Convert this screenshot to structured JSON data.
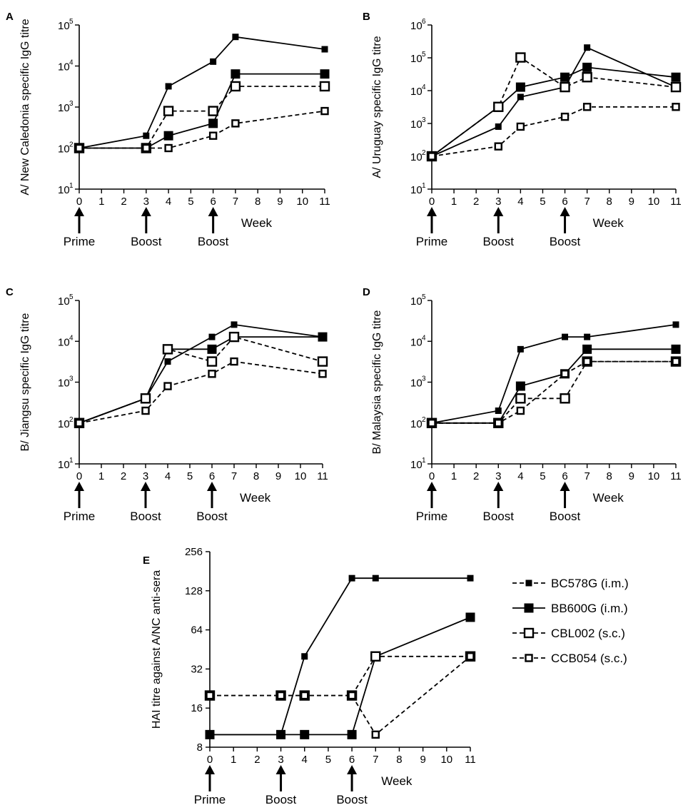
{
  "figure": {
    "week_label": "Week",
    "arrow_labels": [
      "Prime",
      "Boost",
      "Boost"
    ],
    "arrow_weeks": [
      0,
      3,
      6
    ],
    "x_ticks": [
      0,
      1,
      2,
      3,
      4,
      5,
      6,
      7,
      8,
      9,
      10,
      11
    ]
  },
  "legend": {
    "entries": [
      {
        "name": "BC578G (i.m.)",
        "marker": "filled-small",
        "dash": true
      },
      {
        "name": "BB600G (i.m.)",
        "marker": "filled-large",
        "dash": false
      },
      {
        "name": "CBL002 (s.c.)",
        "marker": "open-large",
        "dash": true
      },
      {
        "name": "CCB054 (s.c.)",
        "marker": "open-small",
        "dash": true
      }
    ]
  },
  "colors": {
    "line": "#000000",
    "background": "#ffffff"
  },
  "chart_data": [
    {
      "id": "A",
      "panel_label": "A",
      "type": "line",
      "scale": "log",
      "ylabel": "A/ New Caledonia specific IgG titre",
      "xlabel": "Week",
      "ylim": [
        10,
        100000
      ],
      "y_ticks": [
        {
          "base": "10",
          "exp": "1"
        },
        {
          "base": "10",
          "exp": "2"
        },
        {
          "base": "10",
          "exp": "3"
        },
        {
          "base": "10",
          "exp": "4"
        },
        {
          "base": "10",
          "exp": "5"
        }
      ],
      "series": [
        {
          "name": "BC578G (i.m.)",
          "x": [
            0,
            3,
            4,
            6,
            7,
            11
          ],
          "values": [
            100,
            200,
            3200,
            12800,
            51200,
            25600
          ]
        },
        {
          "name": "BB600G (i.m.)",
          "x": [
            0,
            3,
            4,
            6,
            7,
            11
          ],
          "values": [
            100,
            100,
            200,
            400,
            6400,
            6400
          ]
        },
        {
          "name": "CBL002 (s.c.)",
          "x": [
            0,
            3,
            4,
            6,
            7,
            11
          ],
          "values": [
            100,
            100,
            800,
            800,
            3200,
            3200
          ]
        },
        {
          "name": "CCB054 (s.c.)",
          "x": [
            0,
            3,
            4,
            6,
            7,
            11
          ],
          "values": [
            100,
            100,
            100,
            200,
            400,
            800
          ]
        }
      ]
    },
    {
      "id": "B",
      "panel_label": "B",
      "type": "line",
      "scale": "log",
      "ylabel": "A/ Uruguay specific IgG titre",
      "xlabel": "Week",
      "ylim": [
        10,
        1000000
      ],
      "y_ticks": [
        {
          "base": "10",
          "exp": "1"
        },
        {
          "base": "10",
          "exp": "2"
        },
        {
          "base": "10",
          "exp": "3"
        },
        {
          "base": "10",
          "exp": "4"
        },
        {
          "base": "10",
          "exp": "5"
        },
        {
          "base": "10",
          "exp": "6"
        }
      ],
      "series": [
        {
          "name": "BC578G (i.m.)",
          "x": [
            0,
            3,
            4,
            6,
            7,
            11
          ],
          "values": [
            100,
            800,
            6400,
            12800,
            204800,
            12800
          ]
        },
        {
          "name": "BB600G (i.m.)",
          "x": [
            0,
            3,
            4,
            6,
            7,
            11
          ],
          "values": [
            100,
            3200,
            12800,
            25600,
            51200,
            25600
          ]
        },
        {
          "name": "CBL002 (s.c.)",
          "x": [
            0,
            3,
            4,
            6,
            7,
            11
          ],
          "values": [
            100,
            3200,
            102400,
            12800,
            25600,
            12800
          ]
        },
        {
          "name": "CCB054 (s.c.)",
          "x": [
            0,
            3,
            4,
            6,
            7,
            11
          ],
          "values": [
            100,
            200,
            800,
            1600,
            3200,
            3200
          ]
        }
      ]
    },
    {
      "id": "C",
      "panel_label": "C",
      "type": "line",
      "scale": "log",
      "ylabel": "B/ Jiangsu specific IgG titre",
      "xlabel": "Week",
      "ylim": [
        10,
        100000
      ],
      "y_ticks": [
        {
          "base": "10",
          "exp": "1"
        },
        {
          "base": "10",
          "exp": "2"
        },
        {
          "base": "10",
          "exp": "3"
        },
        {
          "base": "10",
          "exp": "4"
        },
        {
          "base": "10",
          "exp": "5"
        }
      ],
      "series": [
        {
          "name": "BC578G (i.m.)",
          "x": [
            0,
            3,
            4,
            6,
            7,
            11
          ],
          "values": [
            100,
            400,
            3200,
            12800,
            25600,
            12800
          ]
        },
        {
          "name": "BB600G (i.m.)",
          "x": [
            0,
            3,
            4,
            6,
            7,
            11
          ],
          "values": [
            100,
            400,
            6400,
            6400,
            12800,
            12800
          ]
        },
        {
          "name": "CBL002 (s.c.)",
          "x": [
            0,
            3,
            4,
            6,
            7,
            11
          ],
          "values": [
            100,
            400,
            6400,
            3200,
            12800,
            3200
          ]
        },
        {
          "name": "CCB054 (s.c.)",
          "x": [
            0,
            3,
            4,
            6,
            7,
            11
          ],
          "values": [
            100,
            200,
            800,
            1600,
            3200,
            1600
          ]
        }
      ]
    },
    {
      "id": "D",
      "panel_label": "D",
      "type": "line",
      "scale": "log",
      "ylabel": "B/ Malaysia specific IgG titre",
      "xlabel": "Week",
      "ylim": [
        10,
        100000
      ],
      "y_ticks": [
        {
          "base": "10",
          "exp": "1"
        },
        {
          "base": "10",
          "exp": "2"
        },
        {
          "base": "10",
          "exp": "3"
        },
        {
          "base": "10",
          "exp": "4"
        },
        {
          "base": "10",
          "exp": "5"
        }
      ],
      "series": [
        {
          "name": "BC578G (i.m.)",
          "x": [
            0,
            3,
            4,
            6,
            7,
            11
          ],
          "values": [
            100,
            200,
            6400,
            12800,
            12800,
            25600
          ]
        },
        {
          "name": "BB600G (i.m.)",
          "x": [
            0,
            3,
            4,
            6,
            7,
            11
          ],
          "values": [
            100,
            100,
            800,
            1600,
            6400,
            6400
          ]
        },
        {
          "name": "CBL002 (s.c.)",
          "x": [
            0,
            3,
            4,
            6,
            7,
            11
          ],
          "values": [
            100,
            100,
            400,
            400,
            3200,
            3200
          ]
        },
        {
          "name": "CCB054 (s.c.)",
          "x": [
            0,
            3,
            4,
            6,
            7,
            11
          ],
          "values": [
            100,
            100,
            200,
            1600,
            3200,
            3200
          ]
        }
      ]
    },
    {
      "id": "E",
      "panel_label": "E",
      "type": "line",
      "scale": "log2",
      "ylabel": "HAI titre against A/NC anti-sera",
      "xlabel": "Week",
      "ylim": [
        8,
        256
      ],
      "y_ticks": [
        {
          "base": "8",
          "exp": ""
        },
        {
          "base": "16",
          "exp": ""
        },
        {
          "base": "32",
          "exp": ""
        },
        {
          "base": "64",
          "exp": ""
        },
        {
          "base": "128",
          "exp": ""
        },
        {
          "base": "256",
          "exp": ""
        }
      ],
      "series": [
        {
          "name": "BC578G (i.m.)",
          "x": [
            0,
            3,
            4,
            6,
            7,
            11
          ],
          "values": [
            10,
            10,
            40,
            160,
            160,
            160
          ]
        },
        {
          "name": "BB600G (i.m.)",
          "x": [
            0,
            3,
            4,
            6,
            7,
            11
          ],
          "values": [
            10,
            10,
            10,
            10,
            40,
            80
          ]
        },
        {
          "name": "CBL002 (s.c.)",
          "x": [
            0,
            3,
            4,
            6,
            7,
            11
          ],
          "values": [
            20,
            20,
            20,
            20,
            40,
            40
          ]
        },
        {
          "name": "CCB054 (s.c.)",
          "x": [
            0,
            3,
            4,
            6,
            7,
            11
          ],
          "values": [
            20,
            20,
            20,
            20,
            10,
            40
          ]
        }
      ]
    }
  ]
}
